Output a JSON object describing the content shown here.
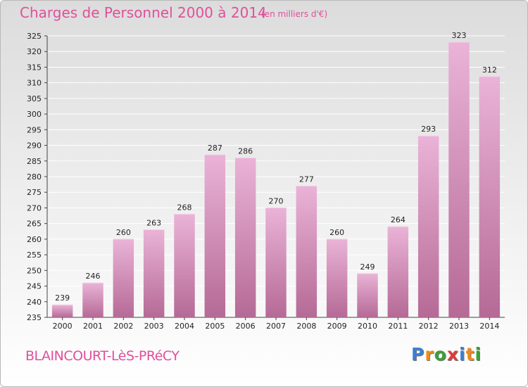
{
  "chart_data": {
    "type": "bar",
    "title": "Charges de Personnel 2000 à 2014",
    "subtitle": "(en milliers d'€)",
    "categories": [
      "2000",
      "2001",
      "2002",
      "2003",
      "2004",
      "2005",
      "2006",
      "2007",
      "2008",
      "2009",
      "2010",
      "2011",
      "2012",
      "2013",
      "2014"
    ],
    "values": [
      239,
      246,
      260,
      263,
      268,
      287,
      286,
      270,
      277,
      260,
      249,
      264,
      293,
      323,
      312
    ],
    "ylim": [
      235,
      325
    ],
    "yticks": [
      235,
      240,
      245,
      250,
      255,
      260,
      265,
      270,
      275,
      280,
      285,
      290,
      295,
      300,
      305,
      310,
      315,
      320,
      325
    ],
    "grid": true,
    "xlabel": "",
    "ylabel": ""
  },
  "footer": {
    "commune": "BLAINCOURT-LèS-PRéCY",
    "logo_letters": [
      "P",
      "r",
      "o",
      "x",
      "i",
      "t",
      "i"
    ]
  },
  "colors": {
    "title": "#e0509b",
    "bar_top": "#eab3d7",
    "bar_bottom": "#b56a96",
    "logo": [
      "#3a7fd0",
      "#f08a1c",
      "#3aa03a",
      "#e03a3a",
      "#3a7fd0",
      "#f08a1c",
      "#3aa03a"
    ]
  }
}
